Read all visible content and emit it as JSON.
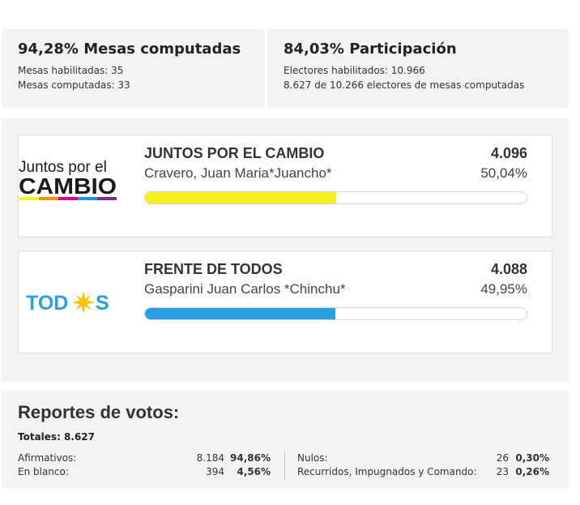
{
  "mesas": {
    "title": "94,28% Mesas computadas",
    "habilitadas": "Mesas habilitadas: 35",
    "computadas": "Mesas computadas: 33"
  },
  "participacion": {
    "title": "84,03% Participación",
    "electores": "Electores habilitados: 10.966",
    "detalle": "8.627 de 10.266 electores de mesas computadas"
  },
  "candidates": [
    {
      "logo_line1": "Juntos por el",
      "logo_line2": "CAMBIO",
      "party": "JUNTOS POR EL CAMBIO",
      "candidate": "Cravero, Juan Maria*Juancho*",
      "votes": "4.096",
      "percent": "50,04%",
      "bar_fraction": 0.5004,
      "bar_color": "#f7f01e"
    },
    {
      "logo_text_a": "TOD",
      "logo_text_b": "S",
      "party": "FRENTE DE TODOS",
      "candidate": "Gasparini Juan Carlos *Chinchu*",
      "votes": "4.088",
      "percent": "49,95%",
      "bar_fraction": 0.4995,
      "bar_color": "#2a9fe4"
    }
  ],
  "reportes": {
    "title": "Reportes de votos:",
    "totales": "Totales: 8.627",
    "afirmativos": {
      "label": "Afirmativos:",
      "value": "8.184",
      "percent": "94,86%"
    },
    "en_blanco": {
      "label": "En blanco:",
      "value": "394",
      "percent": "4,56%"
    },
    "nulos": {
      "label": "Nulos:",
      "value": "26",
      "percent": "0,30%"
    },
    "recurridos": {
      "label": "Recurridos, Impugnados y Comando:",
      "value": "23",
      "percent": "0,26%"
    }
  },
  "colors": {
    "jxc_yellow": "#f7f01e",
    "fdt_blue": "#2a9fe4",
    "sun_yellow": "#f7c400",
    "panel_bg": "#f3f3f3"
  }
}
